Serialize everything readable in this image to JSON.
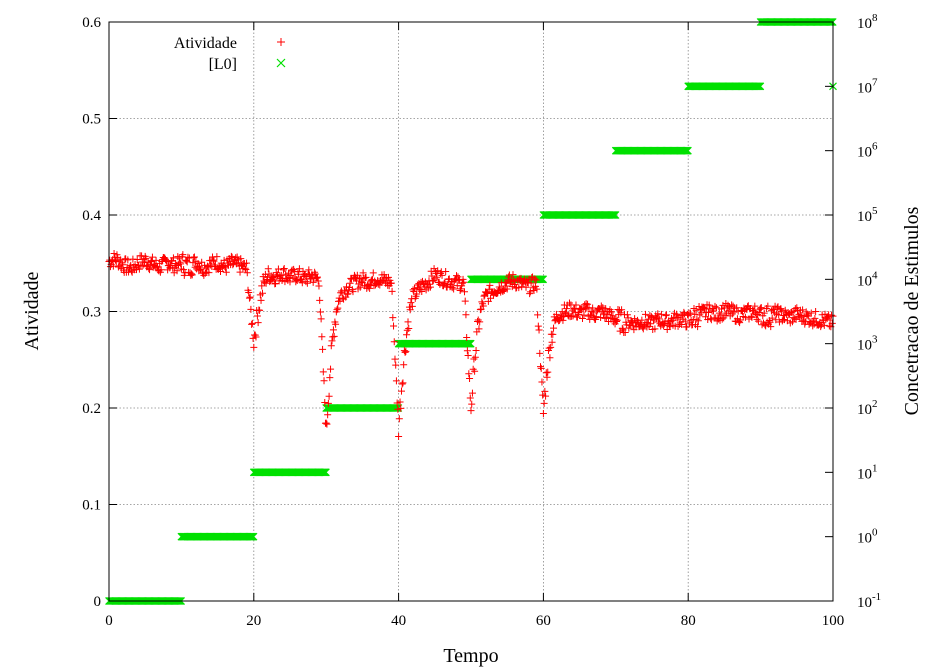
{
  "chart_data": {
    "type": "scatter",
    "xlabel": "Tempo",
    "ylabel": "Atividade",
    "y2label": "Concetracao de Estimulos",
    "xlim": [
      0,
      100
    ],
    "ylim": [
      0,
      0.6
    ],
    "y2lim_log10": [
      -1,
      8
    ],
    "y2scale": "log",
    "grid": true,
    "legend_position": "top-left",
    "x_ticks": [
      "0",
      "20",
      "40",
      "60",
      "80",
      "100"
    ],
    "y_ticks": [
      "0",
      "0.1",
      "0.2",
      "0.3",
      "0.4",
      "0.5",
      "0.6"
    ],
    "y2_ticks": [
      {
        "base": "10",
        "exp": "-1"
      },
      {
        "base": "10",
        "exp": "0"
      },
      {
        "base": "10",
        "exp": "1"
      },
      {
        "base": "10",
        "exp": "2"
      },
      {
        "base": "10",
        "exp": "3"
      },
      {
        "base": "10",
        "exp": "4"
      },
      {
        "base": "10",
        "exp": "5"
      },
      {
        "base": "10",
        "exp": "6"
      },
      {
        "base": "10",
        "exp": "7"
      },
      {
        "base": "10",
        "exp": "8"
      }
    ],
    "series": [
      {
        "name": "Atividade",
        "marker": "+",
        "color": "#ff0000",
        "axis": "left",
        "x": [
          0,
          1,
          2,
          3,
          4,
          5,
          6,
          7,
          8,
          9,
          10,
          11,
          12,
          13,
          14,
          15,
          16,
          17,
          18,
          19,
          20,
          20.5,
          21,
          21.5,
          22,
          23,
          24,
          25,
          26,
          27,
          28,
          29,
          30,
          30.5,
          31,
          31.5,
          32,
          33,
          34,
          35,
          36,
          37,
          38,
          39,
          40,
          40.5,
          41,
          41.5,
          42,
          43,
          44,
          45,
          46,
          47,
          48,
          49,
          50,
          50.5,
          51,
          51.5,
          52,
          53,
          54,
          55,
          56,
          57,
          58,
          59,
          60,
          60.5,
          61,
          61.5,
          62,
          63,
          64,
          65,
          66,
          67,
          68,
          69,
          70,
          71,
          72,
          73,
          74,
          75,
          76,
          77,
          78,
          79,
          80,
          81,
          82,
          83,
          84,
          85,
          86,
          87,
          88,
          89,
          90,
          91,
          92,
          93,
          94,
          95,
          96,
          97,
          98,
          99,
          100
        ],
        "y": [
          0.352,
          0.355,
          0.348,
          0.345,
          0.35,
          0.353,
          0.349,
          0.346,
          0.351,
          0.348,
          0.35,
          0.347,
          0.352,
          0.345,
          0.349,
          0.351,
          0.346,
          0.35,
          0.348,
          0.344,
          0.27,
          0.295,
          0.318,
          0.332,
          0.338,
          0.336,
          0.34,
          0.335,
          0.338,
          0.334,
          0.337,
          0.333,
          0.175,
          0.235,
          0.28,
          0.305,
          0.318,
          0.325,
          0.33,
          0.333,
          0.331,
          0.335,
          0.332,
          0.33,
          0.18,
          0.23,
          0.27,
          0.3,
          0.315,
          0.325,
          0.33,
          0.338,
          0.335,
          0.332,
          0.33,
          0.329,
          0.2,
          0.25,
          0.285,
          0.305,
          0.315,
          0.322,
          0.326,
          0.33,
          0.332,
          0.328,
          0.326,
          0.33,
          0.195,
          0.24,
          0.27,
          0.288,
          0.296,
          0.3,
          0.302,
          0.298,
          0.301,
          0.297,
          0.3,
          0.296,
          0.292,
          0.29,
          0.289,
          0.288,
          0.29,
          0.287,
          0.292,
          0.289,
          0.291,
          0.293,
          0.29,
          0.295,
          0.298,
          0.3,
          0.297,
          0.301,
          0.299,
          0.296,
          0.298,
          0.3,
          0.297,
          0.295,
          0.298,
          0.296,
          0.294,
          0.297,
          0.295,
          0.293,
          0.292,
          0.29,
          0.288
        ]
      },
      {
        "name": "[L0]",
        "marker": "x",
        "color": "#00e000",
        "axis": "right",
        "segments": [
          {
            "x_start": 0,
            "x_end": 10,
            "value": 0.1
          },
          {
            "x_start": 10,
            "x_end": 20,
            "value": 1
          },
          {
            "x_start": 20,
            "x_end": 30,
            "value": 10
          },
          {
            "x_start": 30,
            "x_end": 40,
            "value": 100
          },
          {
            "x_start": 40,
            "x_end": 50,
            "value": 1000
          },
          {
            "x_start": 50,
            "x_end": 60,
            "value": 10000
          },
          {
            "x_start": 60,
            "x_end": 70,
            "value": 100000
          },
          {
            "x_start": 70,
            "x_end": 80,
            "value": 1000000
          },
          {
            "x_start": 80,
            "x_end": 90,
            "value": 10000000
          },
          {
            "x_start": 90,
            "x_end": 100,
            "value": 100000000
          }
        ],
        "extra_points": [
          {
            "x": 100,
            "value": 10000000
          }
        ]
      }
    ]
  }
}
